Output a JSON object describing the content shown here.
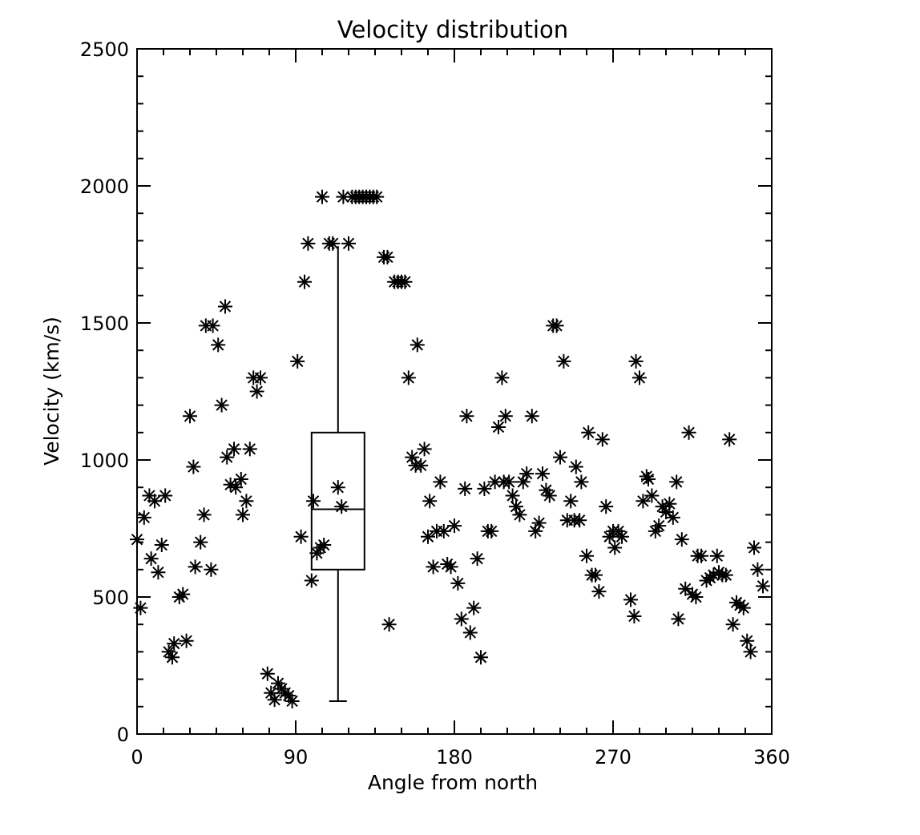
{
  "chart_data": {
    "type": "scatter",
    "title": "Velocity distribution",
    "xlabel": "Angle from north",
    "ylabel": "Velocity (km/s)",
    "xlim": [
      0,
      360
    ],
    "ylim": [
      0,
      2500
    ],
    "x_ticks": [
      "0",
      "90",
      "180",
      "270",
      "360"
    ],
    "y_ticks": [
      "0",
      "500",
      "1000",
      "1500",
      "2000",
      "2500"
    ],
    "grid": false,
    "marker": "asterisk",
    "colors": {
      "marks": "#000000",
      "background": "#ffffff"
    },
    "boxplot": {
      "x": 114,
      "whisker_low": 120,
      "q1": 600,
      "median": 820,
      "q3": 1100,
      "whisker_high": 1780
    },
    "points": [
      [
        0,
        710
      ],
      [
        2,
        460
      ],
      [
        4,
        790
      ],
      [
        7,
        870
      ],
      [
        8,
        640
      ],
      [
        10,
        850
      ],
      [
        12,
        590
      ],
      [
        14,
        690
      ],
      [
        16,
        870
      ],
      [
        18,
        300
      ],
      [
        20,
        280
      ],
      [
        21,
        330
      ],
      [
        24,
        500
      ],
      [
        26,
        510
      ],
      [
        28,
        340
      ],
      [
        30,
        1160
      ],
      [
        32,
        975
      ],
      [
        33,
        610
      ],
      [
        36,
        700
      ],
      [
        38,
        800
      ],
      [
        39,
        1490
      ],
      [
        42,
        600
      ],
      [
        43,
        1490
      ],
      [
        46,
        1420
      ],
      [
        48,
        1200
      ],
      [
        50,
        1560
      ],
      [
        51,
        1010
      ],
      [
        53,
        910
      ],
      [
        55,
        1040
      ],
      [
        56,
        900
      ],
      [
        59,
        930
      ],
      [
        60,
        800
      ],
      [
        62,
        850
      ],
      [
        64,
        1040
      ],
      [
        66,
        1300
      ],
      [
        68,
        1250
      ],
      [
        70,
        1300
      ],
      [
        74,
        220
      ],
      [
        76,
        150
      ],
      [
        78,
        125
      ],
      [
        80,
        185
      ],
      [
        82,
        165
      ],
      [
        84,
        150
      ],
      [
        86,
        140
      ],
      [
        88,
        120
      ],
      [
        91,
        1360
      ],
      [
        93,
        720
      ],
      [
        95,
        1650
      ],
      [
        97,
        1790
      ],
      [
        99,
        560
      ],
      [
        100,
        850
      ],
      [
        102,
        660
      ],
      [
        104,
        680
      ],
      [
        106,
        690
      ],
      [
        105,
        1960
      ],
      [
        109,
        1790
      ],
      [
        111,
        1790
      ],
      [
        114,
        900
      ],
      [
        116,
        830
      ],
      [
        117,
        1960
      ],
      [
        120,
        1790
      ],
      [
        122,
        1960
      ],
      [
        124,
        1960
      ],
      [
        126,
        1960
      ],
      [
        128,
        1960
      ],
      [
        130,
        1960
      ],
      [
        132,
        1960
      ],
      [
        134,
        1960
      ],
      [
        136,
        1960
      ],
      [
        140,
        1740
      ],
      [
        142,
        1740
      ],
      [
        143,
        400
      ],
      [
        146,
        1650
      ],
      [
        148,
        1650
      ],
      [
        150,
        1650
      ],
      [
        152,
        1650
      ],
      [
        154,
        1300
      ],
      [
        156,
        1010
      ],
      [
        158,
        980
      ],
      [
        159,
        1420
      ],
      [
        161,
        980
      ],
      [
        163,
        1040
      ],
      [
        165,
        720
      ],
      [
        166,
        850
      ],
      [
        168,
        610
      ],
      [
        170,
        740
      ],
      [
        172,
        920
      ],
      [
        174,
        740
      ],
      [
        176,
        620
      ],
      [
        178,
        610
      ],
      [
        180,
        760
      ],
      [
        182,
        550
      ],
      [
        184,
        420
      ],
      [
        186,
        895
      ],
      [
        187,
        1160
      ],
      [
        189,
        370
      ],
      [
        191,
        460
      ],
      [
        193,
        640
      ],
      [
        195,
        280
      ],
      [
        197,
        895
      ],
      [
        199,
        740
      ],
      [
        201,
        740
      ],
      [
        203,
        920
      ],
      [
        205,
        1120
      ],
      [
        207,
        1300
      ],
      [
        208,
        920
      ],
      [
        209,
        1160
      ],
      [
        211,
        920
      ],
      [
        213,
        870
      ],
      [
        215,
        830
      ],
      [
        217,
        800
      ],
      [
        219,
        920
      ],
      [
        221,
        950
      ],
      [
        224,
        1160
      ],
      [
        226,
        740
      ],
      [
        228,
        770
      ],
      [
        230,
        950
      ],
      [
        232,
        890
      ],
      [
        234,
        870
      ],
      [
        236,
        1490
      ],
      [
        238,
        1490
      ],
      [
        240,
        1010
      ],
      [
        242,
        1360
      ],
      [
        244,
        780
      ],
      [
        246,
        850
      ],
      [
        248,
        780
      ],
      [
        249,
        975
      ],
      [
        251,
        780
      ],
      [
        252,
        920
      ],
      [
        255,
        650
      ],
      [
        256,
        1100
      ],
      [
        258,
        580
      ],
      [
        260,
        580
      ],
      [
        262,
        520
      ],
      [
        264,
        1075
      ],
      [
        266,
        830
      ],
      [
        268,
        720
      ],
      [
        270,
        740
      ],
      [
        271,
        680
      ],
      [
        273,
        740
      ],
      [
        275,
        720
      ],
      [
        280,
        490
      ],
      [
        282,
        430
      ],
      [
        283,
        1360
      ],
      [
        285,
        1300
      ],
      [
        287,
        850
      ],
      [
        289,
        940
      ],
      [
        290,
        930
      ],
      [
        292,
        870
      ],
      [
        294,
        740
      ],
      [
        296,
        760
      ],
      [
        298,
        830
      ],
      [
        300,
        810
      ],
      [
        302,
        840
      ],
      [
        304,
        790
      ],
      [
        306,
        920
      ],
      [
        307,
        420
      ],
      [
        309,
        710
      ],
      [
        311,
        530
      ],
      [
        313,
        1100
      ],
      [
        315,
        510
      ],
      [
        317,
        500
      ],
      [
        318,
        650
      ],
      [
        320,
        650
      ],
      [
        323,
        560
      ],
      [
        325,
        570
      ],
      [
        327,
        580
      ],
      [
        329,
        650
      ],
      [
        330,
        590
      ],
      [
        332,
        580
      ],
      [
        334,
        580
      ],
      [
        336,
        1075
      ],
      [
        338,
        400
      ],
      [
        340,
        480
      ],
      [
        342,
        470
      ],
      [
        344,
        460
      ],
      [
        346,
        340
      ],
      [
        348,
        300
      ],
      [
        350,
        680
      ],
      [
        352,
        600
      ],
      [
        355,
        540
      ]
    ]
  }
}
